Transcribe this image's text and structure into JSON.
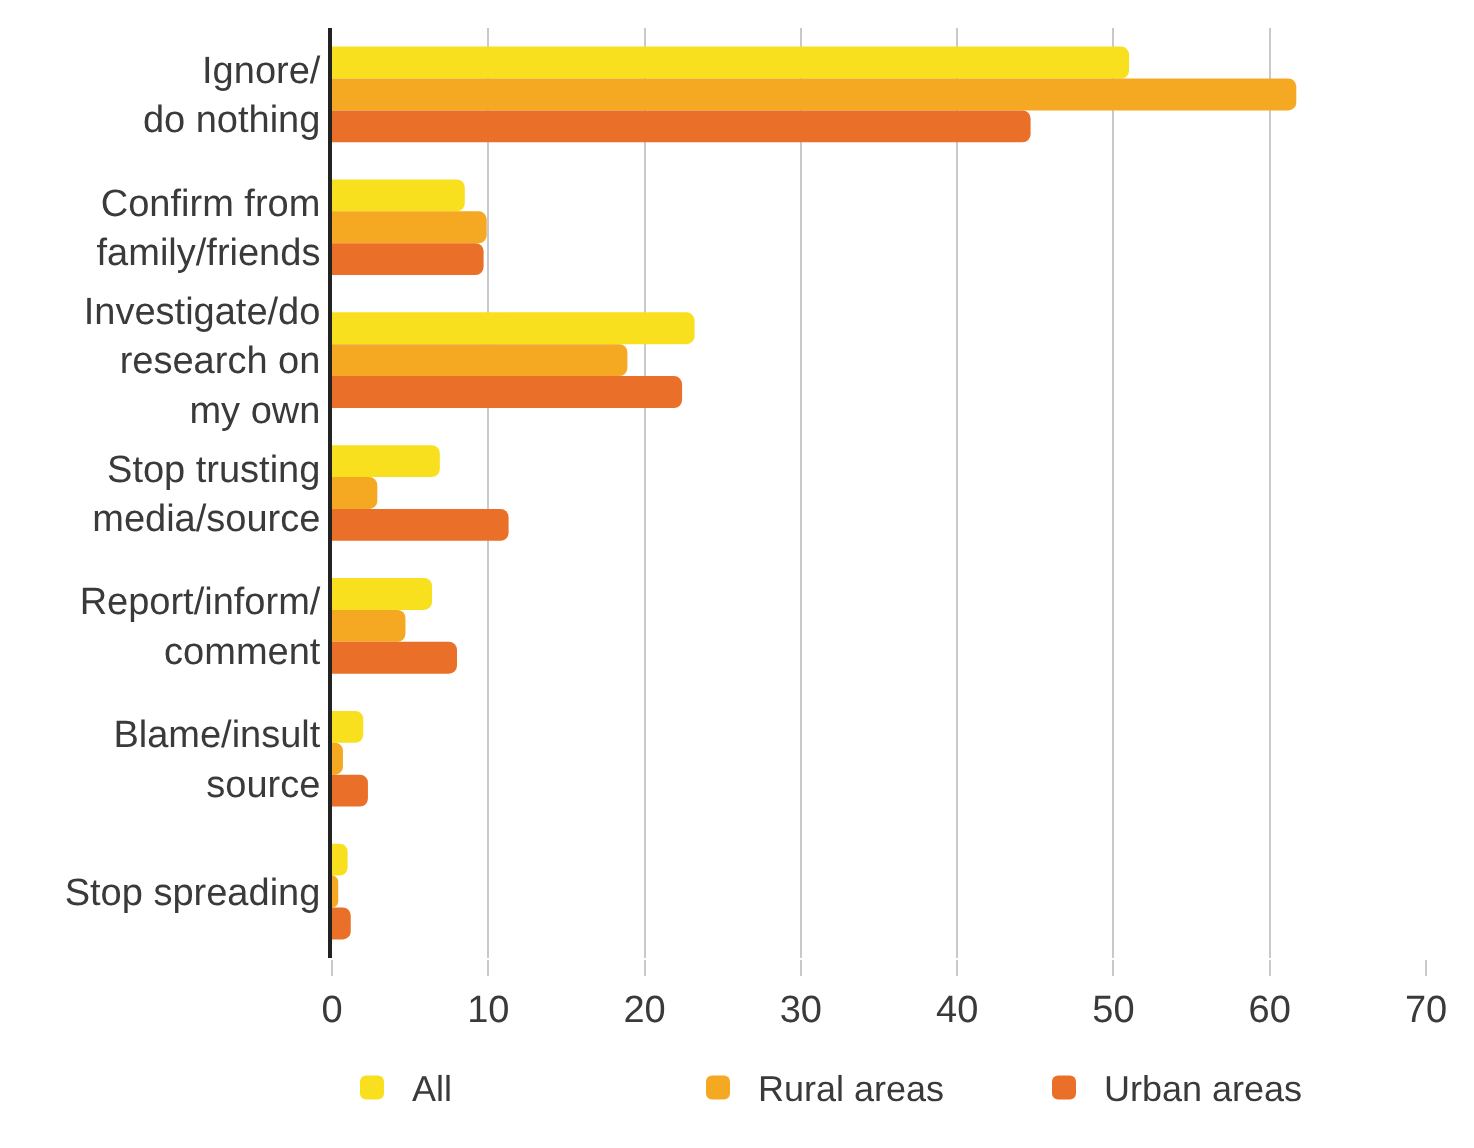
{
  "chart_data": {
    "type": "bar",
    "orientation": "horizontal",
    "categories": [
      "Ignore/\ndo nothing",
      "Confirm from\nfamily/friends",
      "Investigate/do\nresearch on\nmy own",
      "Stop trusting\nmedia/source",
      "Report/inform/\ncomment",
      "Blame/insult\nsource",
      "Stop spreading"
    ],
    "series": [
      {
        "name": "All",
        "color": "#f9e01f",
        "values": [
          51,
          8.5,
          23.2,
          6.9,
          6.4,
          2.0,
          1.0
        ]
      },
      {
        "name": "Rural areas",
        "color": "#f5a922",
        "values": [
          61.7,
          9.9,
          18.9,
          2.9,
          4.7,
          0.7,
          0.4
        ]
      },
      {
        "name": "Urban areas",
        "color": "#ea7029",
        "values": [
          44.7,
          9.7,
          22.4,
          11.3,
          8.0,
          2.3,
          1.2
        ]
      }
    ],
    "xlim": [
      0,
      70
    ],
    "xticks": [
      0,
      10,
      20,
      30,
      40,
      50,
      60,
      70
    ],
    "grid": "x",
    "legend": "bottom"
  }
}
